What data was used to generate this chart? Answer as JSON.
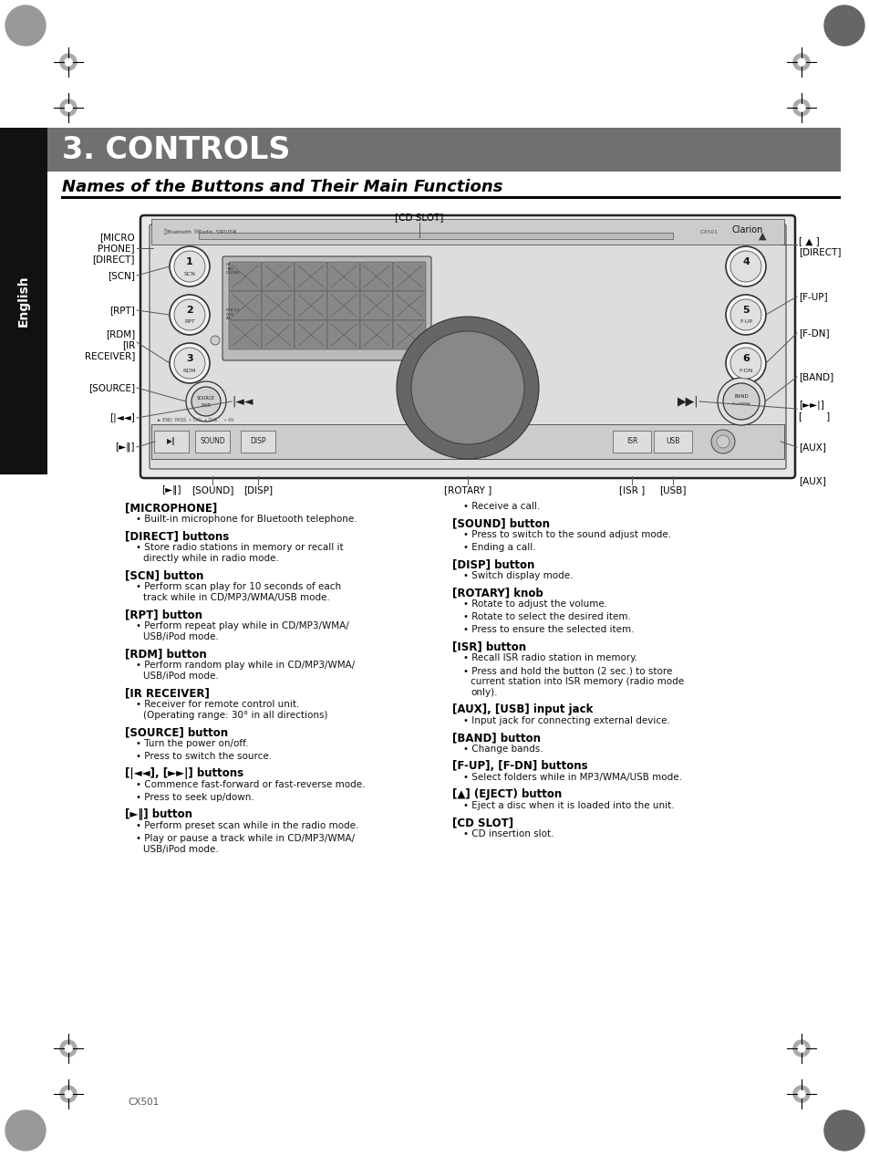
{
  "page_bg": "#ffffff",
  "header_bg": "#707070",
  "header_text": "3. CONTROLS",
  "header_text_color": "#ffffff",
  "subheader_text": "Names of the Buttons and Their Main Functions",
  "sidebar_bg": "#111111",
  "sidebar_text": "English",
  "sidebar_text_color": "#ffffff",
  "footer_text": "CX501",
  "left_col_items": [
    {
      "heading": "[MICROPHONE]",
      "bullets": [
        "Built-in microphone for Bluetooth telephone."
      ]
    },
    {
      "heading": "[DIRECT] buttons",
      "bullets": [
        "Store radio stations in memory or recall it\ndirectly while in radio mode."
      ]
    },
    {
      "heading": "[SCN] button",
      "bullets": [
        "Perform scan play for 10 seconds of each\ntrack while in CD/MP3/WMA/USB mode."
      ]
    },
    {
      "heading": "[RPT] button",
      "bullets": [
        "Perform repeat play while in CD/MP3/WMA/\nUSB/iPod mode."
      ]
    },
    {
      "heading": "[RDM] button",
      "bullets": [
        "Perform random play while in CD/MP3/WMA/\nUSB/iPod mode."
      ]
    },
    {
      "heading": "[IR RECEIVER]",
      "bullets": [
        "Receiver for remote control unit.\n(Operating range: 30° in all directions)"
      ]
    },
    {
      "heading": "[SOURCE] button",
      "bullets": [
        "Turn the power on/off.",
        "Press to switch the source."
      ]
    },
    {
      "heading": "[|◄◄], [►►|] buttons",
      "bullets": [
        "Commence fast-forward or fast-reverse mode.",
        "Press to seek up/down."
      ]
    },
    {
      "heading": "[►‖] button",
      "bullets": [
        "Perform preset scan while in the radio mode.",
        "Play or pause a track while in CD/MP3/WMA/\nUSB/iPod mode."
      ]
    }
  ],
  "right_col_items": [
    {
      "heading": "",
      "bullets": [
        "Receive a call."
      ]
    },
    {
      "heading": "[SOUND] button",
      "bullets": [
        "Press to switch to the sound adjust mode.",
        "Ending a call."
      ]
    },
    {
      "heading": "[DISP] button",
      "bullets": [
        "Switch display mode."
      ]
    },
    {
      "heading": "[ROTARY] knob",
      "bullets": [
        "Rotate to adjust the volume.",
        "Rotate to select the desired item.",
        "Press to ensure the selected item."
      ]
    },
    {
      "heading": "[ISR] button",
      "bullets": [
        "Recall ISR radio station in memory.",
        "Press and hold the button (2 sec.) to store\ncurrent station into ISR memory (radio mode\nonly)."
      ]
    },
    {
      "heading": "[AUX], [USB] input jack",
      "bullets": [
        "Input jack for connecting external device."
      ]
    },
    {
      "heading": "[BAND] button",
      "bullets": [
        "Change bands."
      ]
    },
    {
      "heading": "[F-UP], [F-DN] buttons",
      "bullets": [
        "Select folders while in MP3/WMA/USB mode."
      ]
    },
    {
      "heading": "[▲] (EJECT) button",
      "bullets": [
        "Eject a disc when it is loaded into the unit."
      ]
    },
    {
      "heading": "[CD SLOT]",
      "bullets": [
        "CD insertion slot."
      ]
    }
  ]
}
